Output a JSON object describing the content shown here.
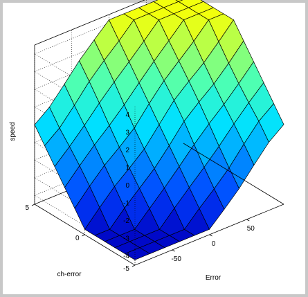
{
  "chart_data": {
    "type": "surface",
    "zlabel": "speed",
    "xlabel": "Error",
    "ylabel": "ch-error",
    "zticks": [
      -4,
      -3,
      -2,
      -1,
      0,
      1,
      2,
      3,
      4
    ],
    "xticks": [
      -50,
      0,
      50
    ],
    "yticks": [
      -5,
      0,
      5
    ],
    "xlim": [
      -100,
      100
    ],
    "ylim": [
      -5,
      5
    ],
    "zlim": [
      -4.5,
      4.5
    ],
    "grid": true,
    "colormap": [
      "#0000bf",
      "#0040ff",
      "#0090ff",
      "#00e0ff",
      "#40ffc0",
      "#a0ff60",
      "#ffff00"
    ],
    "surface": {
      "description_x": "Error grid",
      "description_y": "ch-error grid",
      "x": [
        -100,
        -80,
        -60,
        -40,
        -20,
        0,
        20,
        40,
        60,
        80,
        100
      ],
      "y": [
        -5,
        -4,
        -3,
        -2,
        -1,
        0,
        1,
        2,
        3,
        4,
        5
      ],
      "z_rule": "speed rises with Error + ch-error, saturating at about ±4"
    }
  },
  "labels": {
    "z_axis": "speed",
    "x_axis": "Error",
    "y_axis": "ch-error"
  }
}
